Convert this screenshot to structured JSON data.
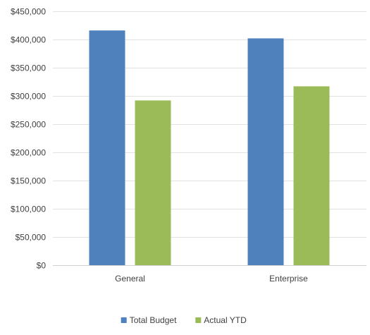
{
  "chart_data": {
    "type": "bar",
    "title": "",
    "xlabel": "",
    "ylabel": "",
    "categories": [
      "General",
      "Enterprise"
    ],
    "series": [
      {
        "name": "Total Budget",
        "color": "#4F81BD",
        "values": [
          416000,
          402000
        ]
      },
      {
        "name": "Actual YTD",
        "color": "#9BBB59",
        "values": [
          292000,
          317000
        ]
      }
    ],
    "ylim": [
      0,
      450000
    ],
    "yticks": [
      0,
      50000,
      100000,
      150000,
      200000,
      250000,
      300000,
      350000,
      400000,
      450000
    ],
    "ytick_labels": [
      "$0",
      "$50,000",
      "$100,000",
      "$150,000",
      "$200,000",
      "$250,000",
      "$300,000",
      "$350,000",
      "$400,000",
      "$450,000"
    ],
    "grid": true,
    "legend_position": "bottom"
  }
}
